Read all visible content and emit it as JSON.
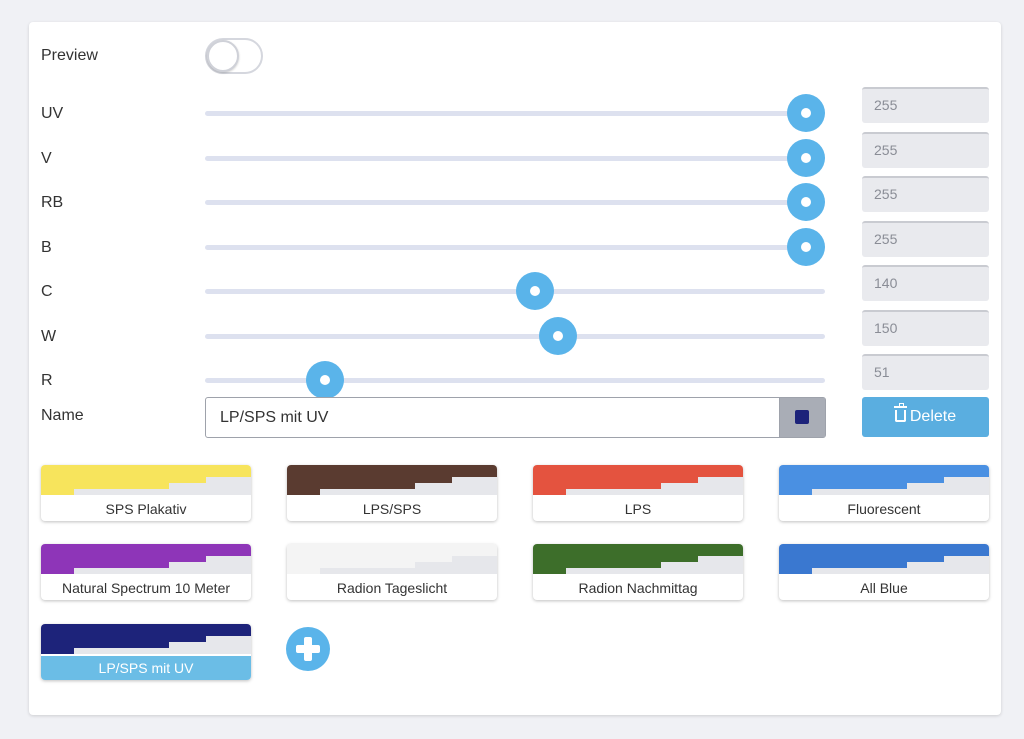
{
  "preview": {
    "label": "Preview",
    "enabled": false
  },
  "channels": [
    {
      "label": "UV",
      "value": "255",
      "fraction": 1.0
    },
    {
      "label": "V",
      "value": "255",
      "fraction": 1.0
    },
    {
      "label": "RB",
      "value": "255",
      "fraction": 1.0
    },
    {
      "label": "B",
      "value": "255",
      "fraction": 1.0
    },
    {
      "label": "C",
      "value": "140",
      "fraction": 0.549
    },
    {
      "label": "W",
      "value": "150",
      "fraction": 0.588
    },
    {
      "label": "R",
      "value": "51",
      "fraction": 0.2
    }
  ],
  "name": {
    "label": "Name",
    "value": "LP/SPS mit UV",
    "color": "#1d237a"
  },
  "delete_label": "Delete",
  "presets": [
    {
      "label": "SPS Plakativ",
      "color": "#f7e45c",
      "active": false
    },
    {
      "label": "LPS/SPS",
      "color": "#5a3b30",
      "active": false
    },
    {
      "label": "LPS",
      "color": "#e4533f",
      "active": false
    },
    {
      "label": "Fluorescent",
      "color": "#4a90e2",
      "active": false
    },
    {
      "label": "Natural Spectrum 10 Meter",
      "color": "#8e35b8",
      "active": false
    },
    {
      "label": "Radion Tageslicht",
      "color": "#f4f4f4",
      "active": false
    },
    {
      "label": "Radion Nachmittag",
      "color": "#3d6e2a",
      "active": false
    },
    {
      "label": "All Blue",
      "color": "#3a78d0",
      "active": false
    },
    {
      "label": "LP/SPS mit UV",
      "color": "#1d237a",
      "active": true
    }
  ],
  "add_icon": "plus-icon",
  "delete_icon": "trash-icon"
}
